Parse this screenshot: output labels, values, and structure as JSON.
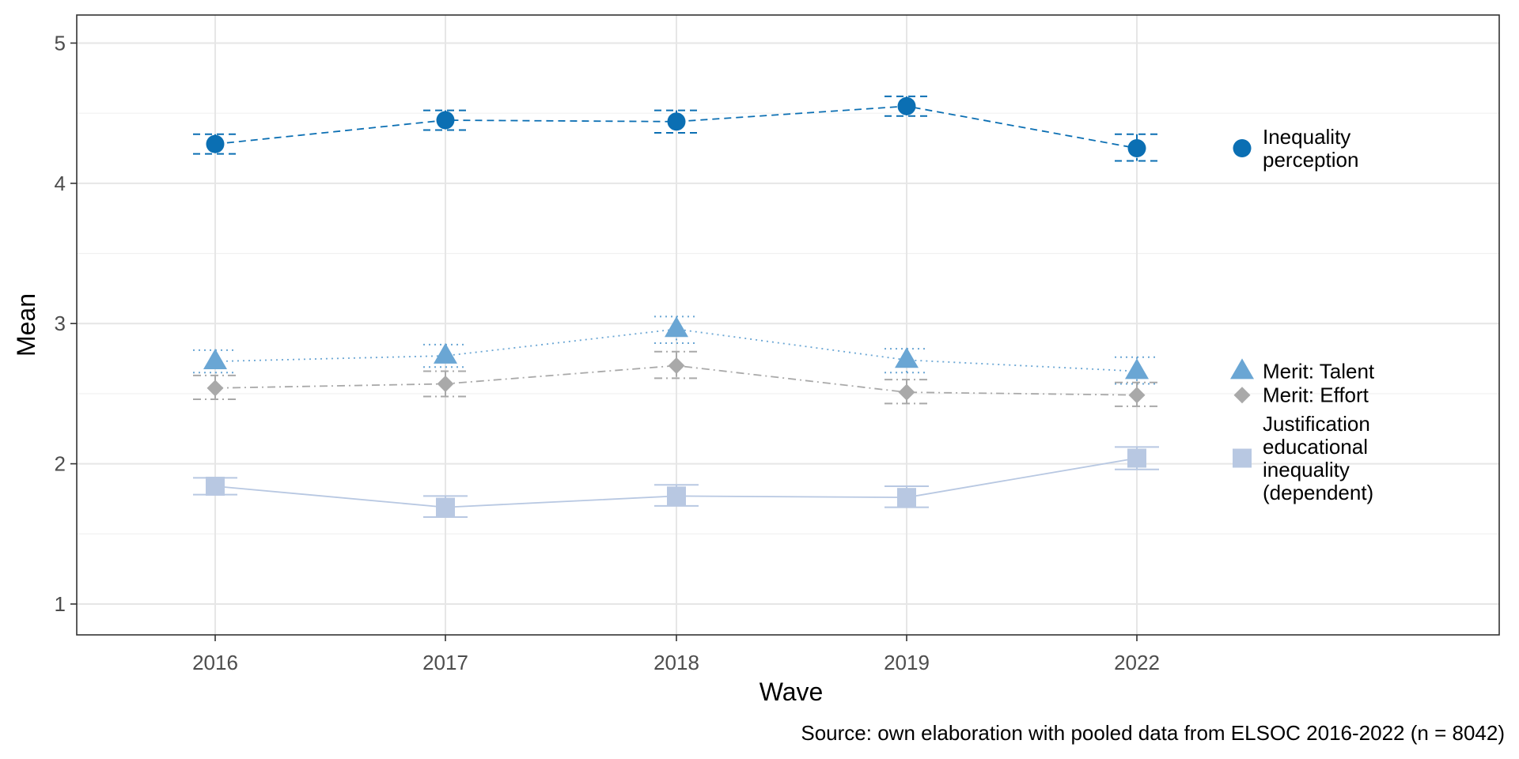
{
  "chart_data": {
    "type": "line",
    "xlabel": "Wave",
    "ylabel": "Mean",
    "caption": "Source: own elaboration with pooled data from ELSOC 2016-2022 (n = 8042)",
    "categories": [
      "2016",
      "2017",
      "2018",
      "2019",
      "2022"
    ],
    "ylim": [
      0.78,
      5.2
    ],
    "yticks": [
      1,
      2,
      3,
      4,
      5
    ],
    "grid": true,
    "legend_position": "right",
    "series": [
      {
        "name": "Inequality perception",
        "legend_lines": [
          "Inequality",
          "perception"
        ],
        "values": [
          4.28,
          4.45,
          4.44,
          4.55,
          4.25
        ],
        "ci_low": [
          4.21,
          4.38,
          4.36,
          4.48,
          4.16
        ],
        "ci_high": [
          4.35,
          4.52,
          4.52,
          4.62,
          4.35
        ],
        "color": "#0b6fb3",
        "marker": "circle",
        "line_style": "dashed"
      },
      {
        "name": "Merit: Talent",
        "legend_lines": [
          "Merit: Talent"
        ],
        "values": [
          2.73,
          2.77,
          2.96,
          2.74,
          2.66
        ],
        "ci_low": [
          2.65,
          2.69,
          2.86,
          2.65,
          2.57
        ],
        "ci_high": [
          2.81,
          2.85,
          3.05,
          2.82,
          2.76
        ],
        "color": "#6aa6d4",
        "marker": "triangle",
        "line_style": "dotted"
      },
      {
        "name": "Merit: Effort",
        "legend_lines": [
          "Merit: Effort"
        ],
        "values": [
          2.54,
          2.57,
          2.7,
          2.51,
          2.49
        ],
        "ci_low": [
          2.46,
          2.48,
          2.61,
          2.43,
          2.41
        ],
        "ci_high": [
          2.63,
          2.66,
          2.8,
          2.6,
          2.58
        ],
        "color": "#a9a9a9",
        "marker": "diamond",
        "line_style": "dashdot"
      },
      {
        "name": "Justification educational inequality (dependent)",
        "legend_lines": [
          "Justification",
          "educational",
          "inequality",
          "(dependent)"
        ],
        "values": [
          1.84,
          1.69,
          1.77,
          1.76,
          2.04
        ],
        "ci_low": [
          1.78,
          1.62,
          1.7,
          1.69,
          1.96
        ],
        "ci_high": [
          1.9,
          1.77,
          1.85,
          1.84,
          2.12
        ],
        "color": "#b8c8e2",
        "marker": "square",
        "line_style": "solid"
      }
    ]
  }
}
